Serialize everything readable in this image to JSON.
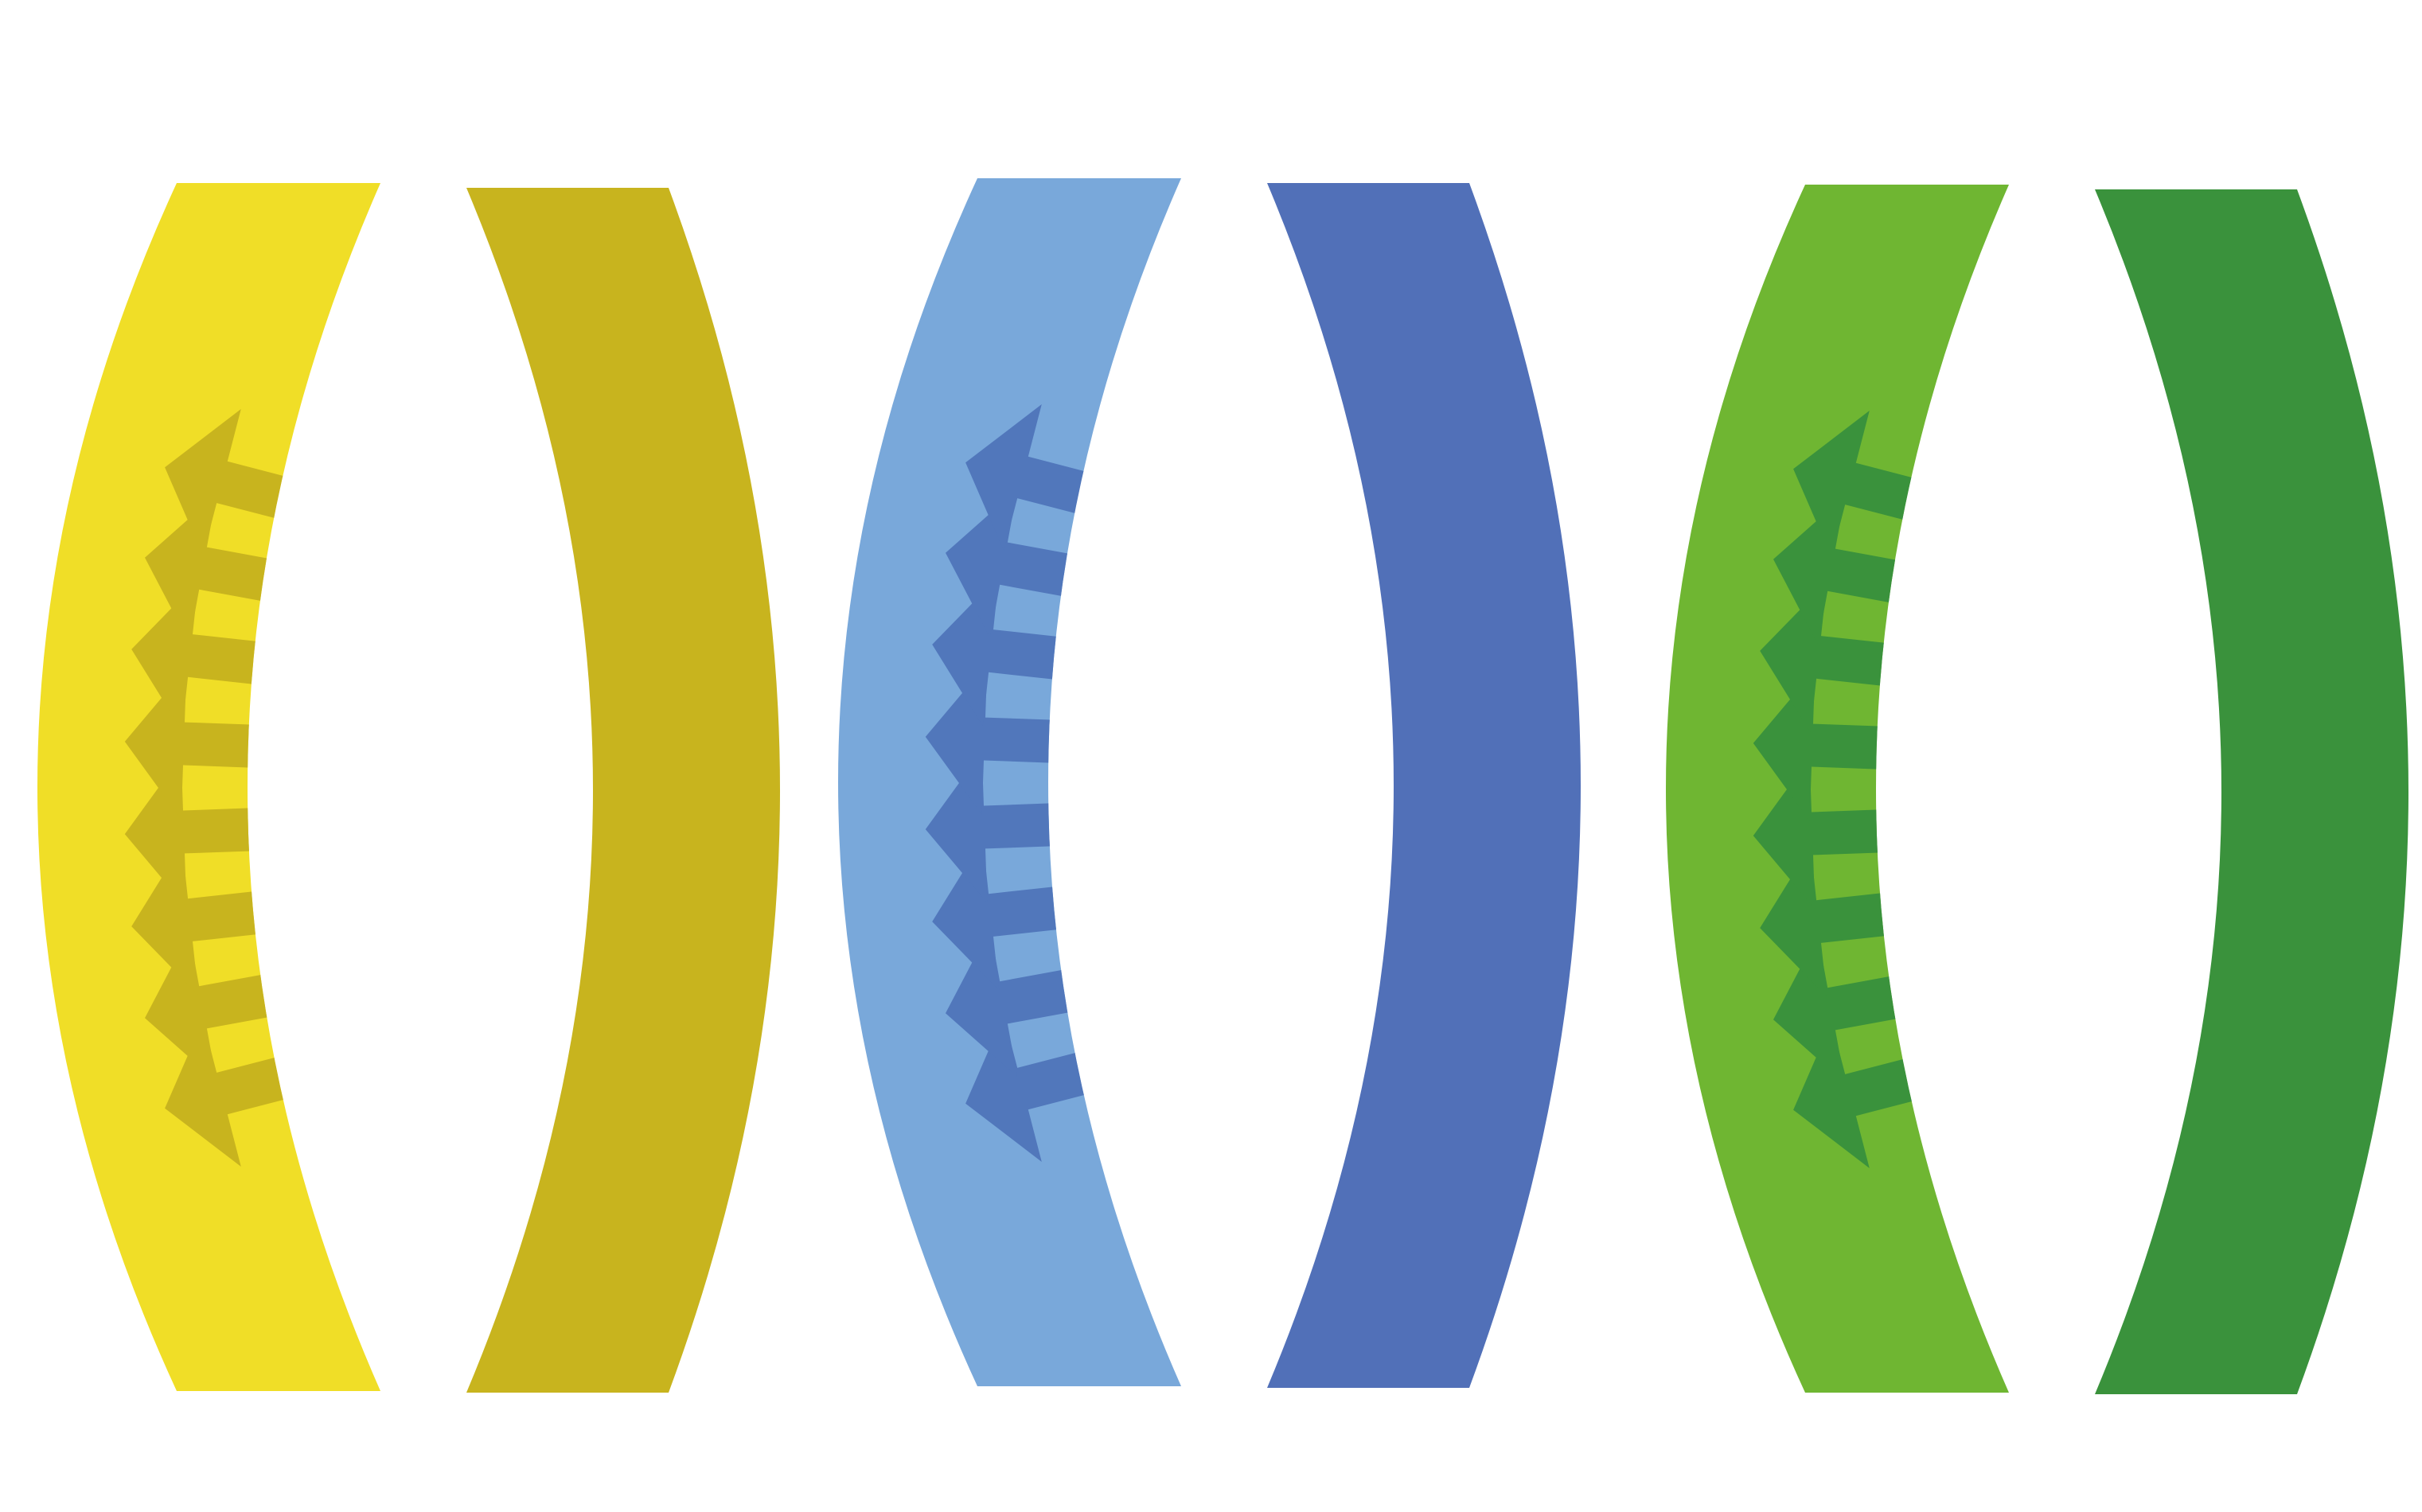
{
  "pairs": [
    {
      "name": "yellow",
      "band_color": "#F0DE27",
      "arrow_color": "#C8B41E",
      "solid_color": "#C8B41E",
      "arrow_count": 8
    },
    {
      "name": "blue",
      "band_color": "#79A8DA",
      "arrow_color": "#5177BB",
      "solid_color": "#5170B8",
      "arrow_count": 8
    },
    {
      "name": "green",
      "band_color": "#6FB632",
      "arrow_color": "#3A923C",
      "solid_color": "#3A923C",
      "arrow_count": 8
    }
  ]
}
